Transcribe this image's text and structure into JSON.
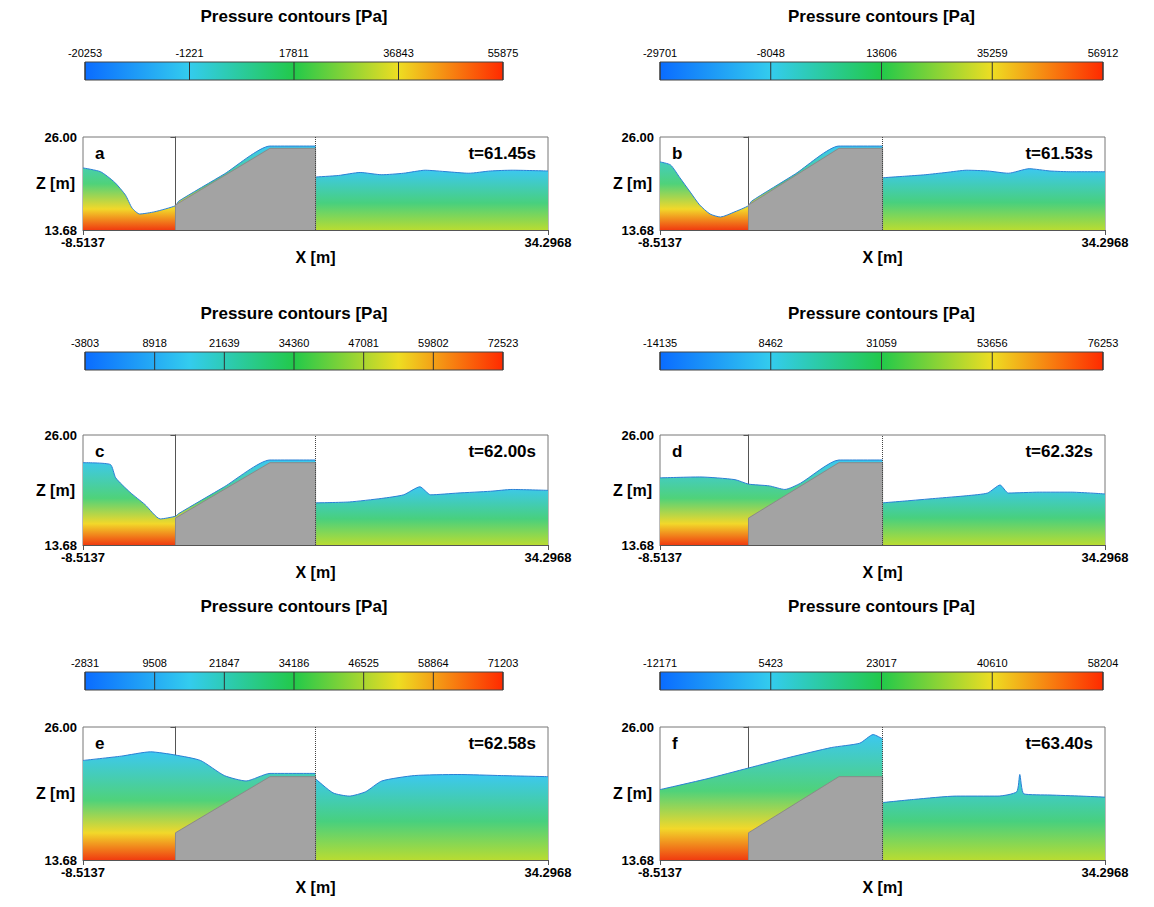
{
  "chart_data": [
    {
      "type": "area",
      "title": "Pressure contours [Pa]",
      "label": "a",
      "annotation": "t=61.45s",
      "xlabel": "X [m]",
      "ylabel": "Z [m]",
      "xlim": [
        -8.5137,
        34.2968
      ],
      "ylim": [
        13.68,
        26
      ],
      "xticks": [
        -8.5137,
        34.2968
      ],
      "yticks": [
        13.68,
        {
          "value": 26,
          "label": "26.00"
        }
      ],
      "colorbar": {
        "range": [
          -20253,
          55875
        ],
        "ticks": [
          -20253,
          -1221,
          17811,
          36843,
          55875
        ]
      },
      "structure": {
        "x": [
          0,
          0,
          8.7,
          12.9,
          12.9
        ],
        "z": [
          13.68,
          17.0,
          24.5,
          24.5,
          13.68
        ]
      },
      "water": [
        {
          "x": [
            -8.5137,
            -6.9,
            -5.6,
            -4.6,
            -4.0,
            -3.3,
            -1.9,
            0,
            0.3,
            4.5,
            8.7,
            12.9
          ],
          "z": [
            21.9,
            21.4,
            20.0,
            18.3,
            16.6,
            15.8,
            16.1,
            16.9,
            17.5,
            21.1,
            24.8,
            24.8
          ]
        },
        {
          "x": [
            12.9,
            15,
            17,
            19,
            21,
            23,
            25,
            27,
            29,
            31,
            34.2968
          ],
          "z": [
            20.7,
            20.9,
            21.3,
            21.0,
            21.2,
            21.6,
            21.4,
            21.2,
            21.5,
            21.6,
            21.5
          ]
        }
      ]
    },
    {
      "type": "area",
      "title": "Pressure contours [Pa]",
      "label": "b",
      "annotation": "t=61.53s",
      "xlabel": "X [m]",
      "ylabel": "Z [m]",
      "xlim": [
        -8.5137,
        34.2968
      ],
      "ylim": [
        13.68,
        26
      ],
      "xticks": [
        -8.5137,
        34.2968
      ],
      "yticks": [
        13.68,
        {
          "value": 26,
          "label": "26.00"
        }
      ],
      "colorbar": {
        "range": [
          -29701,
          56912
        ],
        "ticks": [
          -29701,
          -8048,
          13606,
          35259,
          56912
        ]
      },
      "structure": {
        "x": [
          0,
          0,
          8.7,
          12.9,
          12.9
        ],
        "z": [
          13.68,
          17.0,
          24.5,
          24.5,
          13.68
        ]
      },
      "water": [
        {
          "x": [
            -8.5137,
            -7.5,
            -6.6,
            -5.6,
            -4.7,
            -3.7,
            -2.7,
            -1.3,
            0,
            0.3,
            4.5,
            8.7,
            12.9
          ],
          "z": [
            22.7,
            22.3,
            20.6,
            18.7,
            17.0,
            15.8,
            15.4,
            16.1,
            16.9,
            17.5,
            21.1,
            24.8,
            24.8
          ]
        },
        {
          "x": [
            12.9,
            15,
            17,
            19,
            21,
            23,
            25,
            27,
            29,
            31,
            34.2968
          ],
          "z": [
            20.6,
            20.8,
            21.0,
            21.3,
            21.6,
            21.5,
            21.2,
            21.8,
            21.5,
            21.4,
            21.4
          ]
        }
      ]
    },
    {
      "type": "area",
      "title": "Pressure contours [Pa]",
      "label": "c",
      "annotation": "t=62.00s",
      "xlabel": "X [m]",
      "ylabel": "Z [m]",
      "xlim": [
        -8.5137,
        34.2968
      ],
      "ylim": [
        13.68,
        26
      ],
      "xticks": [
        -8.5137,
        34.2968
      ],
      "yticks": [
        13.68,
        {
          "value": 26,
          "label": "26.00"
        }
      ],
      "colorbar": {
        "range": [
          -3803,
          72523
        ],
        "ticks": [
          -3803,
          8918,
          21639,
          34360,
          47081,
          59802,
          72523
        ]
      },
      "structure": {
        "x": [
          0,
          0,
          8.7,
          12.9,
          12.9
        ],
        "z": [
          13.68,
          16.7,
          22.9,
          22.9,
          13.68
        ]
      },
      "water": [
        {
          "x": [
            -8.5137,
            -6.0,
            -5.5,
            -4.2,
            -2.8,
            -1.4,
            0,
            0.3,
            4.5,
            8.7,
            12.9
          ],
          "z": [
            22.9,
            22.7,
            21.2,
            19.6,
            18.2,
            16.6,
            16.9,
            17.2,
            20.2,
            23.2,
            23.2
          ]
        },
        {
          "x": [
            12.9,
            16,
            19,
            21,
            22.5,
            23.5,
            26,
            29,
            31,
            34.2968
          ],
          "z": [
            18.4,
            18.5,
            18.9,
            19.3,
            20.2,
            19.3,
            19.5,
            19.7,
            19.9,
            19.8
          ]
        }
      ]
    },
    {
      "type": "area",
      "title": "Pressure contours [Pa]",
      "label": "d",
      "annotation": "t=62.32s",
      "xlabel": "X [m]",
      "ylabel": "Z [m]",
      "xlim": [
        -8.5137,
        34.2968
      ],
      "ylim": [
        13.68,
        26
      ],
      "xticks": [
        -8.5137,
        34.2968
      ],
      "yticks": [
        13.68,
        {
          "value": 26,
          "label": "26.00"
        }
      ],
      "colorbar": {
        "range": [
          -14135,
          76253
        ],
        "ticks": [
          -14135,
          8462,
          31059,
          53656,
          76253
        ]
      },
      "structure": {
        "x": [
          0,
          0,
          8.7,
          12.9,
          12.9
        ],
        "z": [
          13.68,
          16.7,
          22.9,
          22.9,
          13.68
        ]
      },
      "water": [
        {
          "x": [
            -8.5137,
            -4.7,
            -1.3,
            0,
            2,
            3.5,
            5,
            8.7,
            12.9
          ],
          "z": [
            21.2,
            21.3,
            21.0,
            20.5,
            20.3,
            19.9,
            20.6,
            23.2,
            23.2
          ]
        },
        {
          "x": [
            12.9,
            15,
            18,
            21,
            23,
            24.2,
            25,
            28,
            31,
            34.2968
          ],
          "z": [
            18.4,
            18.6,
            18.9,
            19.2,
            19.5,
            20.4,
            19.5,
            19.6,
            19.6,
            19.4
          ]
        }
      ]
    },
    {
      "type": "area",
      "title": "Pressure contours [Pa]",
      "label": "e",
      "annotation": "t=62.58s",
      "xlabel": "X [m]",
      "ylabel": "Z [m]",
      "xlim": [
        -8.5137,
        34.2968
      ],
      "ylim": [
        13.68,
        26
      ],
      "xticks": [
        -8.5137,
        34.2968
      ],
      "yticks": [
        13.68,
        {
          "value": 26,
          "label": "26.00"
        }
      ],
      "colorbar": {
        "range": [
          -2831,
          71203
        ],
        "ticks": [
          -2831,
          9508,
          21847,
          34186,
          46525,
          58864,
          71203
        ]
      },
      "structure": {
        "x": [
          0,
          0,
          8.7,
          12.9,
          12.9
        ],
        "z": [
          13.68,
          16.2,
          21.4,
          21.4,
          13.68
        ]
      },
      "water": [
        {
          "x": [
            -8.5137,
            -5,
            -2.3,
            0,
            2.3,
            4.5,
            6.5,
            8.7,
            12.9
          ],
          "z": [
            22.9,
            23.3,
            23.7,
            23.4,
            22.9,
            21.5,
            21.0,
            21.7,
            21.7
          ]
        },
        {
          "x": [
            12.9,
            14.5,
            16,
            17.5,
            19,
            22,
            26,
            30,
            34.2968
          ],
          "z": [
            21.2,
            19.9,
            19.6,
            20.0,
            21.0,
            21.5,
            21.6,
            21.5,
            21.4
          ]
        }
      ]
    },
    {
      "type": "area",
      "title": "Pressure contours [Pa]",
      "label": "f",
      "annotation": "t=63.40s",
      "xlabel": "X [m]",
      "ylabel": "Z [m]",
      "xlim": [
        -8.5137,
        34.2968
      ],
      "ylim": [
        13.68,
        26
      ],
      "xticks": [
        -8.5137,
        34.2968
      ],
      "yticks": [
        13.68,
        {
          "value": 26,
          "label": "26.00"
        }
      ],
      "colorbar": {
        "range": [
          -12171,
          58204
        ],
        "ticks": [
          -12171,
          5423,
          23017,
          40610,
          58204
        ]
      },
      "structure": {
        "x": [
          0,
          0,
          8.7,
          12.9,
          12.9
        ],
        "z": [
          13.68,
          16.2,
          21.4,
          21.4,
          13.68
        ]
      },
      "water": [
        {
          "x": [
            -8.5137,
            -4,
            0,
            4,
            8,
            10.7,
            12.0,
            12.9
          ],
          "z": [
            20.2,
            21.2,
            22.2,
            23.2,
            24.1,
            24.5,
            25.3,
            24.9
          ]
        },
        {
          "x": [
            12.9,
            16,
            20,
            24,
            25.8,
            26.1,
            26.5,
            29,
            32,
            34.2968
          ],
          "z": [
            19.0,
            19.3,
            19.6,
            19.6,
            20.0,
            21.6,
            19.8,
            19.7,
            19.6,
            19.5
          ]
        }
      ]
    }
  ]
}
